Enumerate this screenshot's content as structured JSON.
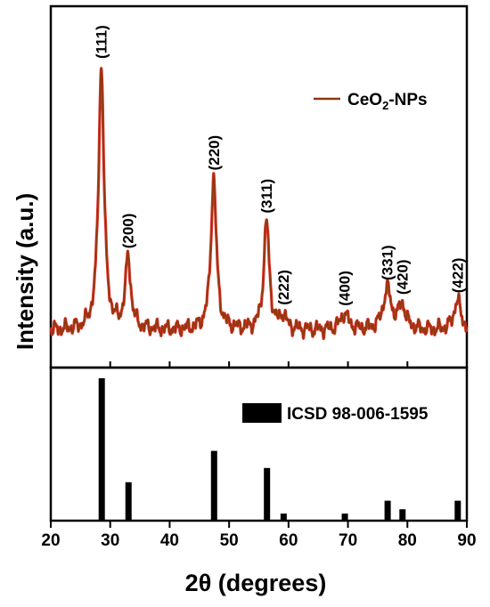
{
  "chart_data": [
    {
      "type": "line",
      "ylabel": "Intensity (a.u.)",
      "xlim": [
        20,
        90
      ],
      "ylim": [
        0,
        100
      ],
      "legend": {
        "placement": "top-right",
        "label_main": "CeO",
        "label_sub": "2",
        "label_suffix": "-NPs"
      },
      "series_color": "#8B3A0E",
      "series_edge_color": "#E0302A",
      "peaks": [
        {
          "x": 28.5,
          "height": 97,
          "width": 0.55,
          "label": "(111)"
        },
        {
          "x": 33.0,
          "height": 26,
          "width": 0.55,
          "label": "(200)"
        },
        {
          "x": 47.4,
          "height": 56,
          "width": 0.55,
          "label": "(220)"
        },
        {
          "x": 56.3,
          "height": 40,
          "width": 0.55,
          "label": "(311)"
        },
        {
          "x": 59.1,
          "height": 5,
          "width": 0.6,
          "label": "(222)"
        },
        {
          "x": 69.4,
          "height": 6,
          "width": 0.8,
          "label": "(400)"
        },
        {
          "x": 76.6,
          "height": 15,
          "width": 0.8,
          "label": "(331)"
        },
        {
          "x": 79.1,
          "height": 9,
          "width": 0.7,
          "label": "(420)"
        },
        {
          "x": 88.4,
          "height": 11,
          "width": 0.7,
          "label": "(422)"
        }
      ]
    },
    {
      "type": "bar",
      "xlabel": "2θ (degrees)",
      "xlim": [
        20,
        90
      ],
      "ylim": [
        0,
        100
      ],
      "xticks": [
        20,
        30,
        40,
        50,
        60,
        70,
        80,
        90
      ],
      "legend": {
        "placement": "top-right",
        "label": "ICSD 98-006-1595"
      },
      "bars": [
        {
          "x": 28.5,
          "value": 100
        },
        {
          "x": 33.0,
          "value": 27
        },
        {
          "x": 47.4,
          "value": 49
        },
        {
          "x": 56.3,
          "value": 37
        },
        {
          "x": 59.1,
          "value": 5
        },
        {
          "x": 69.4,
          "value": 5
        },
        {
          "x": 76.6,
          "value": 14
        },
        {
          "x": 79.1,
          "value": 8
        },
        {
          "x": 88.4,
          "value": 14
        }
      ]
    }
  ]
}
